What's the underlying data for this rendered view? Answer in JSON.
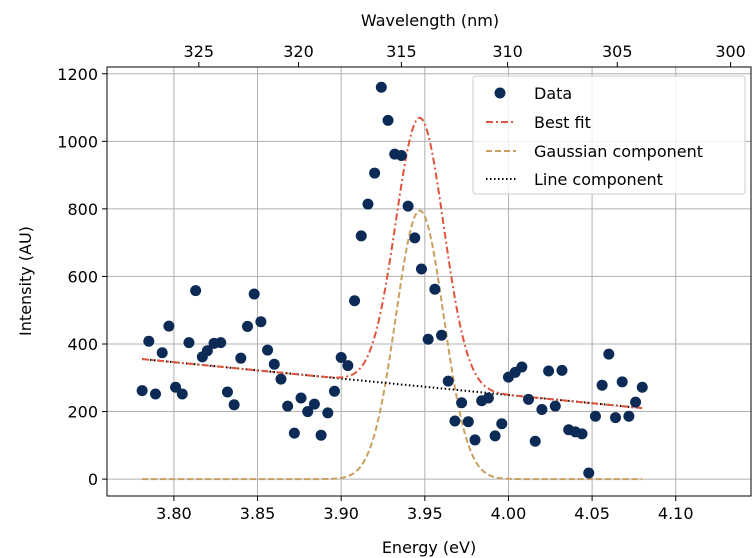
{
  "chart_data": {
    "type": "scatter",
    "xlabel": "Energy (eV)",
    "ylabel": "Intensity (AU)",
    "top_xlabel": "Wavelength (nm)",
    "xlim": [
      3.76,
      4.145
    ],
    "ylim": [
      -50,
      1220
    ],
    "x_ticks": [
      "3.80",
      "3.85",
      "3.90",
      "3.95",
      "4.00",
      "4.05",
      "4.10"
    ],
    "y_ticks": [
      "0",
      "200",
      "400",
      "600",
      "800",
      "1000",
      "1200"
    ],
    "top_ticks": [
      "325",
      "320",
      "315",
      "310",
      "305",
      "300"
    ],
    "grid": true,
    "legend": {
      "position": "top-right",
      "entries": [
        "Data",
        "Best fit",
        "Gaussian component",
        "Line component"
      ]
    },
    "colors": {
      "data": "#0b2a55",
      "best_fit": "#e0533c",
      "gaussian": "#c9a060",
      "line": "#000000"
    },
    "series": [
      {
        "name": "Data",
        "style": "markers",
        "points": [
          [
            3.781,
            262
          ],
          [
            3.785,
            408
          ],
          [
            3.789,
            252
          ],
          [
            3.793,
            374
          ],
          [
            3.797,
            453
          ],
          [
            3.801,
            272
          ],
          [
            3.805,
            252
          ],
          [
            3.809,
            404
          ],
          [
            3.813,
            558
          ],
          [
            3.817,
            362
          ],
          [
            3.82,
            380
          ],
          [
            3.824,
            402
          ],
          [
            3.828,
            404
          ],
          [
            3.832,
            258
          ],
          [
            3.836,
            220
          ],
          [
            3.84,
            358
          ],
          [
            3.844,
            452
          ],
          [
            3.848,
            548
          ],
          [
            3.852,
            466
          ],
          [
            3.856,
            382
          ],
          [
            3.86,
            340
          ],
          [
            3.864,
            296
          ],
          [
            3.868,
            216
          ],
          [
            3.872,
            136
          ],
          [
            3.876,
            240
          ],
          [
            3.88,
            200
          ],
          [
            3.884,
            222
          ],
          [
            3.888,
            130
          ],
          [
            3.892,
            196
          ],
          [
            3.896,
            260
          ],
          [
            3.9,
            360
          ],
          [
            3.904,
            336
          ],
          [
            3.908,
            528
          ],
          [
            3.912,
            720
          ],
          [
            3.916,
            814
          ],
          [
            3.92,
            906
          ],
          [
            3.924,
            1160
          ],
          [
            3.928,
            1062
          ],
          [
            3.932,
            962
          ],
          [
            3.936,
            958
          ],
          [
            3.94,
            808
          ],
          [
            3.944,
            714
          ],
          [
            3.948,
            622
          ],
          [
            3.952,
            414
          ],
          [
            3.956,
            562
          ],
          [
            3.96,
            426
          ],
          [
            3.964,
            290
          ],
          [
            3.968,
            172
          ],
          [
            3.972,
            226
          ],
          [
            3.976,
            170
          ],
          [
            3.98,
            116
          ],
          [
            3.984,
            232
          ],
          [
            3.988,
            240
          ],
          [
            3.992,
            128
          ],
          [
            3.996,
            164
          ],
          [
            4.0,
            302
          ],
          [
            4.004,
            316
          ],
          [
            4.008,
            332
          ],
          [
            4.012,
            236
          ],
          [
            4.016,
            112
          ],
          [
            4.02,
            206
          ],
          [
            4.024,
            320
          ],
          [
            4.028,
            216
          ],
          [
            4.032,
            322
          ],
          [
            4.036,
            146
          ],
          [
            4.04,
            140
          ],
          [
            4.044,
            134
          ],
          [
            4.048,
            18
          ],
          [
            4.052,
            186
          ],
          [
            4.056,
            278
          ],
          [
            4.06,
            370
          ],
          [
            4.064,
            182
          ],
          [
            4.068,
            288
          ],
          [
            4.072,
            186
          ],
          [
            4.076,
            228
          ],
          [
            4.08,
            272
          ]
        ]
      },
      {
        "name": "Best fit",
        "style": "dash-dot",
        "model": {
          "amplitude": 795,
          "center": 3.947,
          "sigma": 0.0143,
          "slope": -486,
          "intercept": 2193
        }
      },
      {
        "name": "Gaussian component",
        "style": "dashed",
        "model": {
          "amplitude": 795,
          "center": 3.947,
          "sigma": 0.0143
        }
      },
      {
        "name": "Line component",
        "style": "dotted",
        "model": {
          "slope": -486,
          "intercept": 2193
        }
      }
    ]
  }
}
